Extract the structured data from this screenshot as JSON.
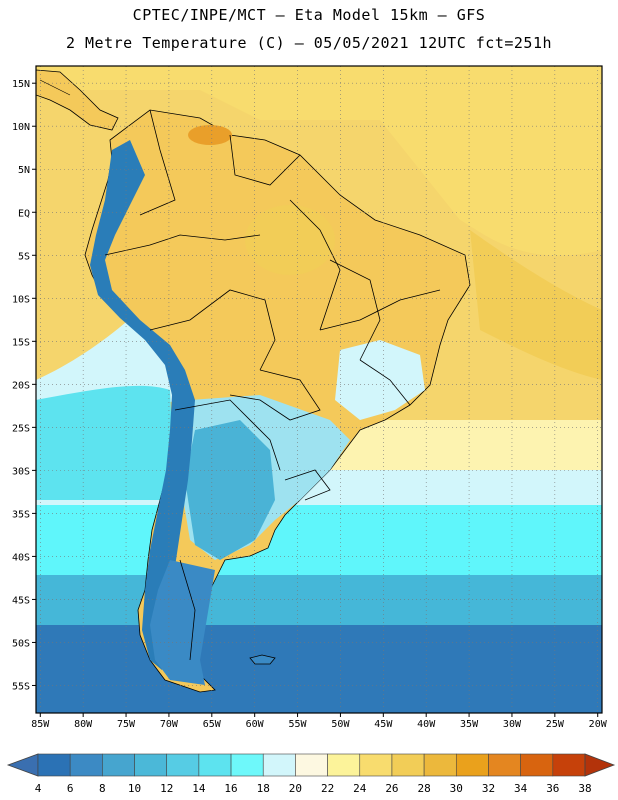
{
  "header": {
    "title_line1": "CPTEC/INPE/MCT –  Eta Model 15km – GFS",
    "title_line2": "2 Metre Temperature (C) – 05/05/2021 12UTC fct=251h"
  },
  "map": {
    "variable": "2 Metre Temperature",
    "units": "C",
    "lat_labels": [
      "15N",
      "10N",
      "5N",
      "EQ",
      "5S",
      "10S",
      "15S",
      "20S",
      "25S",
      "30S",
      "35S",
      "40S",
      "45S",
      "50S",
      "55S"
    ],
    "lon_labels": [
      "85W",
      "80W",
      "75W",
      "70W",
      "65W",
      "60W",
      "55W",
      "50W",
      "45W",
      "40W",
      "35W",
      "30W",
      "25W",
      "20W"
    ],
    "lat_values": [
      15,
      10,
      5,
      0,
      -5,
      -10,
      -15,
      -20,
      -25,
      -30,
      -35,
      -40,
      -45,
      -50,
      -55
    ],
    "lon_values": [
      -85,
      -80,
      -75,
      -70,
      -65,
      -60,
      -55,
      -50,
      -45,
      -40,
      -35,
      -30,
      -25,
      -20
    ],
    "extent": {
      "lon_min": -85.5,
      "lon_max": -19.5,
      "lat_min": -58.2,
      "lat_max": 17.0
    }
  },
  "colorbar": {
    "labels": [
      "4",
      "6",
      "8",
      "10",
      "12",
      "14",
      "16",
      "18",
      "20",
      "22",
      "24",
      "26",
      "28",
      "30",
      "32",
      "34",
      "36",
      "38"
    ],
    "colors": [
      "#3a6fb0",
      "#2b72b5",
      "#3c8ac4",
      "#46a5cf",
      "#4bb8d8",
      "#56cce4",
      "#5de3ef",
      "#6ef8fa",
      "#d2f6fb",
      "#fdf8e1",
      "#fcf39a",
      "#f8dc6e",
      "#f2cd57",
      "#ecb83c",
      "#eaa11c",
      "#e48620",
      "#d8640f",
      "#c6410a",
      "#b3330a"
    ]
  },
  "palette": {
    "ocean_tropical": "#f5d56c",
    "ocean_subtropical": "#fdf3b0",
    "ocean_temperate": "#5ff6fb",
    "ocean_cool": "#45b7d8",
    "ocean_cold": "#2f79b8",
    "land_warm": "#f4c95a",
    "land_hot": "#e99f2a",
    "land_mild": "#9ee2f0",
    "land_cool": "#4ab3d6",
    "andes": "#2a7db8",
    "patagonia": "#3a8ac5",
    "border": "#000000"
  }
}
